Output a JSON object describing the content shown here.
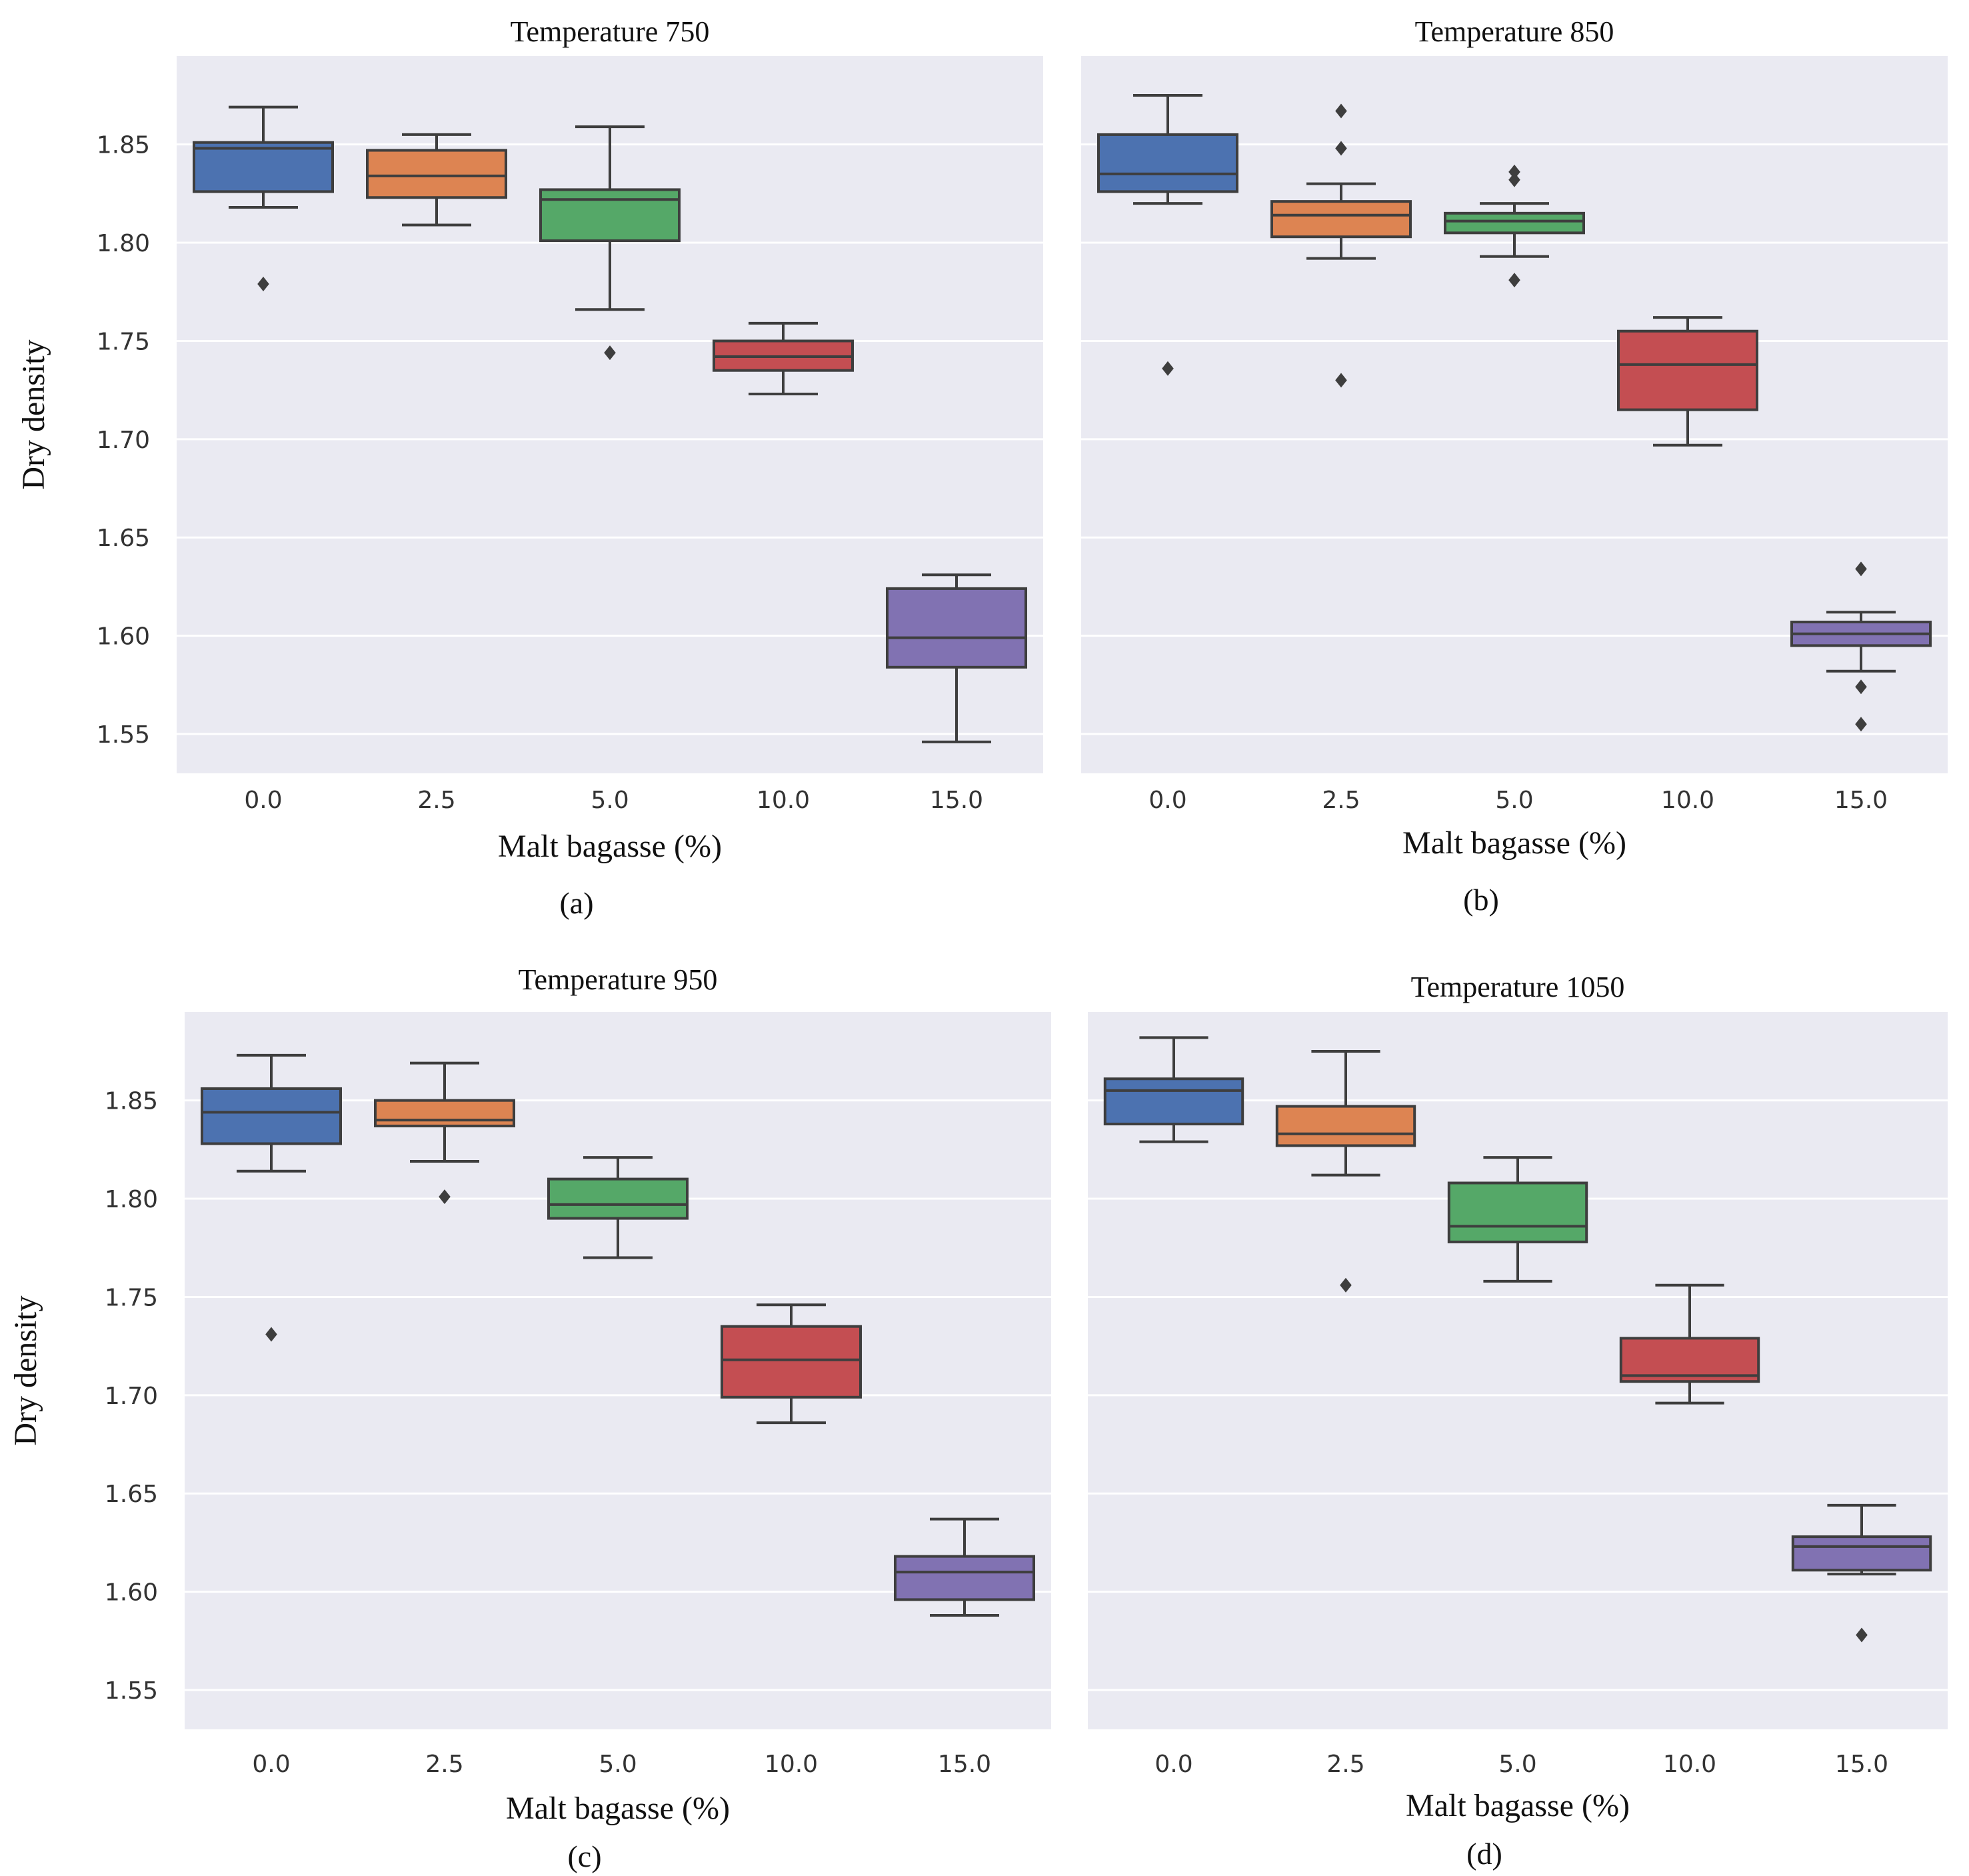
{
  "chart_data": [
    {
      "type": "box",
      "title": "Temperature 750",
      "xlabel": "Malt bagasse (%)",
      "ylabel": "Dry density",
      "panel_label": "(a)",
      "ylim": [
        1.53,
        1.895
      ],
      "yticks": [
        "1.55",
        "1.60",
        "1.65",
        "1.70",
        "1.75",
        "1.80",
        "1.85"
      ],
      "categories": [
        "0.0",
        "2.5",
        "5.0",
        "10.0",
        "15.0"
      ],
      "boxes": [
        {
          "whislo": 1.818,
          "q1": 1.826,
          "med": 1.848,
          "q3": 1.851,
          "whishi": 1.869,
          "fliers": [
            1.779
          ]
        },
        {
          "whislo": 1.809,
          "q1": 1.823,
          "med": 1.834,
          "q3": 1.847,
          "whishi": 1.855,
          "fliers": []
        },
        {
          "whislo": 1.766,
          "q1": 1.801,
          "med": 1.822,
          "q3": 1.827,
          "whishi": 1.859,
          "fliers": [
            1.744
          ]
        },
        {
          "whislo": 1.723,
          "q1": 1.735,
          "med": 1.742,
          "q3": 1.75,
          "whishi": 1.759,
          "fliers": []
        },
        {
          "whislo": 1.546,
          "q1": 1.584,
          "med": 1.599,
          "q3": 1.624,
          "whishi": 1.631,
          "fliers": []
        }
      ]
    },
    {
      "type": "box",
      "title": "Temperature 850",
      "xlabel": "Malt bagasse (%)",
      "ylabel": "",
      "panel_label": "(b)",
      "ylim": [
        1.53,
        1.895
      ],
      "yticks": [],
      "categories": [
        "0.0",
        "2.5",
        "5.0",
        "10.0",
        "15.0"
      ],
      "boxes": [
        {
          "whislo": 1.82,
          "q1": 1.826,
          "med": 1.835,
          "q3": 1.855,
          "whishi": 1.875,
          "fliers": [
            1.736
          ]
        },
        {
          "whislo": 1.792,
          "q1": 1.803,
          "med": 1.814,
          "q3": 1.821,
          "whishi": 1.83,
          "fliers": [
            1.848,
            1.867,
            1.73
          ]
        },
        {
          "whislo": 1.793,
          "q1": 1.805,
          "med": 1.811,
          "q3": 1.815,
          "whishi": 1.82,
          "fliers": [
            1.832,
            1.836,
            1.781
          ]
        },
        {
          "whislo": 1.697,
          "q1": 1.715,
          "med": 1.738,
          "q3": 1.755,
          "whishi": 1.762,
          "fliers": []
        },
        {
          "whislo": 1.582,
          "q1": 1.595,
          "med": 1.601,
          "q3": 1.607,
          "whishi": 1.612,
          "fliers": [
            1.634,
            1.574,
            1.555
          ]
        }
      ]
    },
    {
      "type": "box",
      "title": "Temperature 950",
      "xlabel": "Malt bagasse (%)",
      "ylabel": "Dry density",
      "panel_label": "(c)",
      "ylim": [
        1.53,
        1.895
      ],
      "yticks": [
        "1.55",
        "1.60",
        "1.65",
        "1.70",
        "1.75",
        "1.80",
        "1.85"
      ],
      "categories": [
        "0.0",
        "2.5",
        "5.0",
        "10.0",
        "15.0"
      ],
      "boxes": [
        {
          "whislo": 1.814,
          "q1": 1.828,
          "med": 1.844,
          "q3": 1.856,
          "whishi": 1.873,
          "fliers": [
            1.731
          ]
        },
        {
          "whislo": 1.819,
          "q1": 1.837,
          "med": 1.84,
          "q3": 1.85,
          "whishi": 1.869,
          "fliers": [
            1.801
          ]
        },
        {
          "whislo": 1.77,
          "q1": 1.79,
          "med": 1.797,
          "q3": 1.81,
          "whishi": 1.821,
          "fliers": []
        },
        {
          "whislo": 1.686,
          "q1": 1.699,
          "med": 1.718,
          "q3": 1.735,
          "whishi": 1.746,
          "fliers": []
        },
        {
          "whislo": 1.588,
          "q1": 1.596,
          "med": 1.61,
          "q3": 1.618,
          "whishi": 1.637,
          "fliers": []
        }
      ]
    },
    {
      "type": "box",
      "title": "Temperature 1050",
      "xlabel": "Malt bagasse (%)",
      "ylabel": "",
      "panel_label": "(d)",
      "ylim": [
        1.53,
        1.895
      ],
      "yticks": [],
      "categories": [
        "0.0",
        "2.5",
        "5.0",
        "10.0",
        "15.0"
      ],
      "boxes": [
        {
          "whislo": 1.829,
          "q1": 1.838,
          "med": 1.855,
          "q3": 1.861,
          "whishi": 1.882,
          "fliers": []
        },
        {
          "whislo": 1.812,
          "q1": 1.827,
          "med": 1.833,
          "q3": 1.847,
          "whishi": 1.875,
          "fliers": [
            1.756
          ]
        },
        {
          "whislo": 1.758,
          "q1": 1.778,
          "med": 1.786,
          "q3": 1.808,
          "whishi": 1.821,
          "fliers": []
        },
        {
          "whislo": 1.696,
          "q1": 1.707,
          "med": 1.71,
          "q3": 1.729,
          "whishi": 1.756,
          "fliers": []
        },
        {
          "whislo": 1.609,
          "q1": 1.611,
          "med": 1.623,
          "q3": 1.628,
          "whishi": 1.644,
          "fliers": [
            1.578
          ]
        }
      ]
    }
  ],
  "colors": {
    "panel_bg": "#EAEAF2",
    "grid": "#FFFFFF",
    "line": "#3E3E3E",
    "series": [
      "#4C72B0",
      "#DD8452",
      "#55A868",
      "#C44E52",
      "#8172B2"
    ]
  }
}
